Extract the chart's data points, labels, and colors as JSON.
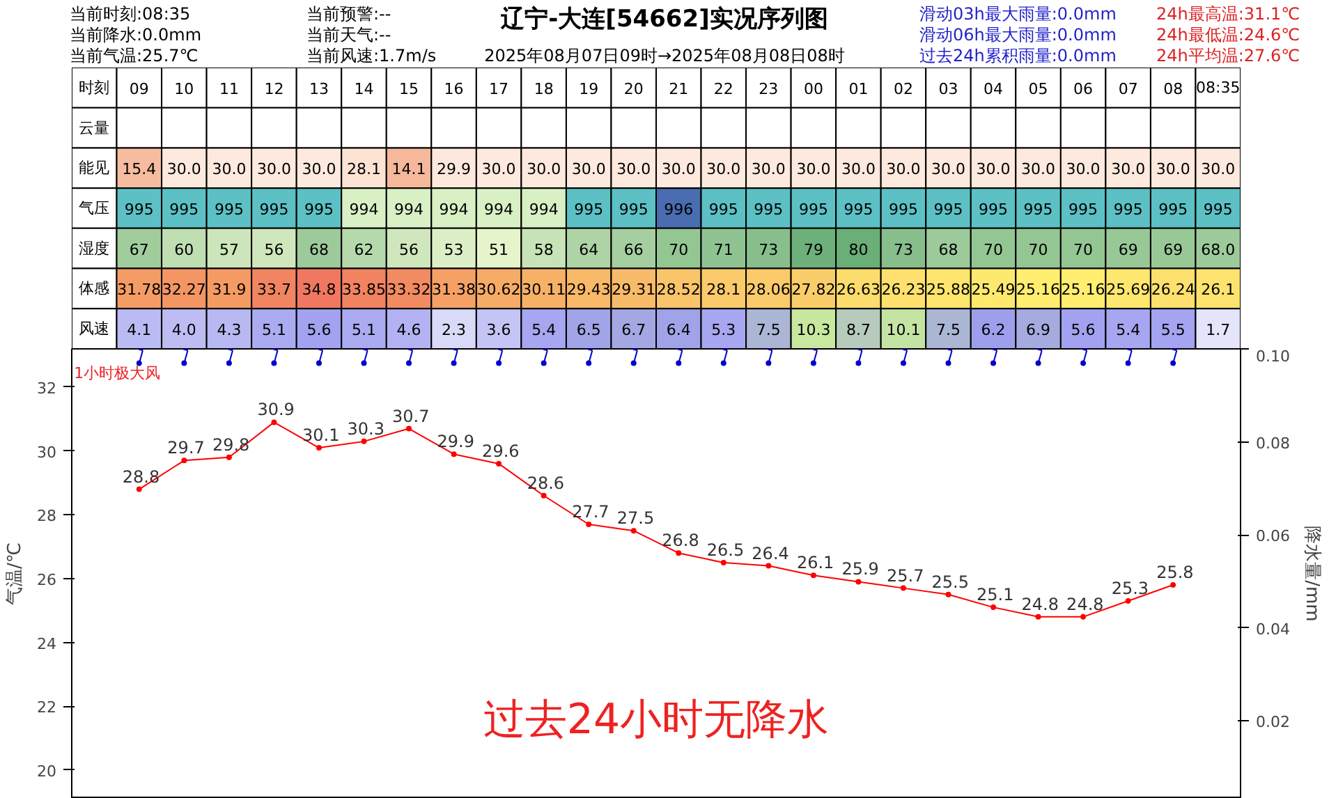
{
  "chart_data": [
    {
      "type": "heatmap",
      "title": "辽宁-大连[54662]实况序列图",
      "subtitle": "2025年08月07日09时→2025年08月08日08时",
      "xlabel": "时刻",
      "annotations": [
        "当前时刻:08:35",
        "当前降水:0.0mm",
        "当前气温:25.7℃",
        "当前预警:--",
        "当前天气:--",
        "当前风速:1.7m/s",
        "滑动03h最大雨量:0.0mm",
        "滑动06h最大雨量:0.0mm",
        "过去24h累积雨量:0.0mm",
        "24h最高温:31.1℃",
        "24h最低温:24.6℃",
        "24h平均温:27.6℃"
      ],
      "categories": [
        "09",
        "10",
        "11",
        "12",
        "13",
        "14",
        "15",
        "16",
        "17",
        "18",
        "19",
        "20",
        "21",
        "22",
        "23",
        "00",
        "01",
        "02",
        "03",
        "04",
        "05",
        "06",
        "07",
        "08",
        "08:35"
      ],
      "y_categories": [
        "云量",
        "能见",
        "气压",
        "湿度",
        "体感",
        "风速"
      ],
      "cells": [
        [
          null,
          null,
          null,
          null,
          null,
          null,
          null,
          null,
          null,
          null,
          null,
          null,
          null,
          null,
          null,
          null,
          null,
          null,
          null,
          null,
          null,
          null,
          null,
          null,
          null
        ],
        [
          15.4,
          30.0,
          30.0,
          30.0,
          30.0,
          28.1,
          14.1,
          29.9,
          30.0,
          30.0,
          30.0,
          30.0,
          30.0,
          30.0,
          30.0,
          30.0,
          30.0,
          30.0,
          30.0,
          30.0,
          30.0,
          30.0,
          30.0,
          30.0,
          30.0
        ],
        [
          995,
          995,
          995,
          995,
          995,
          994,
          994,
          994,
          994,
          994,
          995,
          995,
          996,
          995,
          995,
          995,
          995,
          995,
          995,
          995,
          995,
          995,
          995,
          995,
          995
        ],
        [
          67,
          60,
          57,
          56,
          68,
          62,
          56,
          53,
          51,
          58,
          64,
          66,
          70,
          71,
          73,
          79,
          80,
          73,
          68,
          70,
          70,
          70,
          69,
          69,
          68.0
        ],
        [
          31.78,
          32.27,
          31.9,
          33.7,
          34.8,
          33.85,
          33.32,
          31.38,
          30.62,
          30.11,
          29.43,
          29.31,
          28.52,
          28.1,
          28.06,
          27.82,
          26.63,
          26.23,
          25.88,
          25.49,
          25.16,
          25.16,
          25.69,
          26.24,
          26.1
        ],
        [
          4.1,
          4.0,
          4.3,
          5.1,
          5.6,
          5.1,
          4.6,
          2.3,
          3.6,
          5.4,
          6.5,
          6.7,
          6.4,
          5.3,
          7.5,
          10.3,
          8.7,
          10.1,
          7.5,
          6.2,
          6.9,
          5.6,
          5.4,
          5.5,
          1.7
        ]
      ],
      "cell_labels": [
        [
          null,
          null,
          null,
          null,
          null,
          null,
          null,
          null,
          null,
          null,
          null,
          null,
          null,
          null,
          null,
          null,
          null,
          null,
          null,
          null,
          null,
          null,
          null,
          null,
          null
        ],
        [
          "15.4",
          "30.0",
          "30.0",
          "30.0",
          "30.0",
          "28.1",
          "14.1",
          "29.9",
          "30.0",
          "30.0",
          "30.0",
          "30.0",
          "30.0",
          "30.0",
          "30.0",
          "30.0",
          "30.0",
          "30.0",
          "30.0",
          "30.0",
          "30.0",
          "30.0",
          "30.0",
          "30.0",
          "30.0"
        ],
        [
          "995",
          "995",
          "995",
          "995",
          "995",
          "994",
          "994",
          "994",
          "994",
          "994",
          "995",
          "995",
          "996",
          "995",
          "995",
          "995",
          "995",
          "995",
          "995",
          "995",
          "995",
          "995",
          "995",
          "995",
          "995"
        ],
        [
          "67",
          "60",
          "57",
          "56",
          "68",
          "62",
          "56",
          "53",
          "51",
          "58",
          "64",
          "66",
          "70",
          "71",
          "73",
          "79",
          "80",
          "73",
          "68",
          "70",
          "70",
          "70",
          "69",
          "69",
          "68.0"
        ],
        [
          "31.78",
          "32.27",
          "31.9",
          "33.7",
          "34.8",
          "33.85",
          "33.32",
          "31.38",
          "30.62",
          "30.11",
          "29.43",
          "29.31",
          "28.52",
          "28.1",
          "28.06",
          "27.82",
          "26.63",
          "26.23",
          "25.88",
          "25.49",
          "25.16",
          "25.16",
          "25.69",
          "26.24",
          "26.1"
        ],
        [
          "4.1",
          "4.0",
          "4.3",
          "5.1",
          "5.6",
          "5.1",
          "4.6",
          "2.3",
          "3.6",
          "5.4",
          "6.5",
          "6.7",
          "6.4",
          "5.3",
          "7.5",
          "10.3",
          "8.7",
          "10.1",
          "7.5",
          "6.2",
          "6.9",
          "5.6",
          "5.4",
          "5.5",
          "1.7"
        ]
      ]
    },
    {
      "type": "line",
      "ylabel": "气温/℃",
      "y2label": "降水量/mm",
      "categories": [
        "09",
        "10",
        "11",
        "12",
        "13",
        "14",
        "15",
        "16",
        "17",
        "18",
        "19",
        "20",
        "21",
        "22",
        "23",
        "00",
        "01",
        "02",
        "03",
        "04",
        "05",
        "06",
        "07",
        "08"
      ],
      "series": [
        {
          "color": "#ff0000",
          "values": [
            28.8,
            29.7,
            29.8,
            30.9,
            30.1,
            30.3,
            30.7,
            29.9,
            29.6,
            28.6,
            27.7,
            27.5,
            26.8,
            26.5,
            26.4,
            26.1,
            25.9,
            25.7,
            25.5,
            25.1,
            24.8,
            24.8,
            25.3,
            25.8
          ]
        }
      ],
      "data_labels": true,
      "marker": "circle",
      "line_style": "solid",
      "grid": false,
      "tick_labels": "y",
      "ylim": [
        19.1,
        33.2
      ],
      "yticks": [
        20,
        22,
        24,
        26,
        28,
        30,
        32
      ],
      "y2lim": [
        0.0033,
        0.1
      ],
      "y2ticks": [
        0.02,
        0.04,
        0.06,
        0.08,
        {
          "value": 0.1,
          "label": "0.10"
        }
      ],
      "annotations": [
        "1小时极大风",
        "过去24小时无降水"
      ]
    }
  ]
}
